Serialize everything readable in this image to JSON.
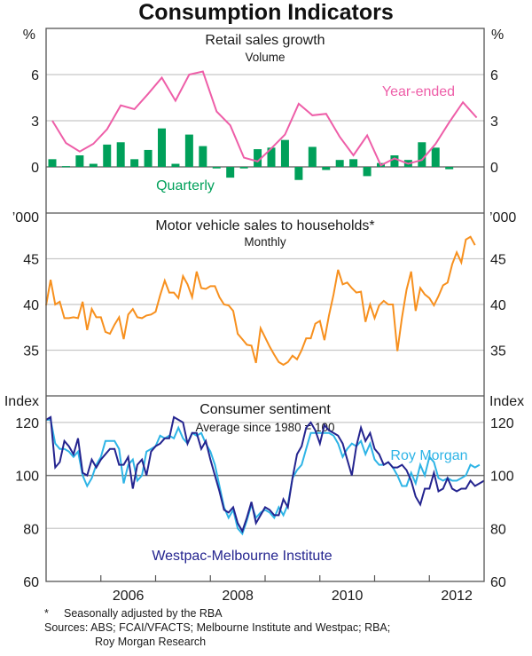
{
  "title": "Consumption Indicators",
  "colors": {
    "year_ended": "#ee5ea8",
    "quarterly": "#00a05a",
    "motor": "#f7901e",
    "westpac": "#24248f",
    "roy_morgan": "#2eb4e6",
    "grid": "#c8c8c8",
    "axis": "#555555"
  },
  "chart_data": [
    {
      "type": "bar+line",
      "title": "Retail sales growth",
      "subtitle": "Volume",
      "ylabel_left": "%",
      "ylabel_right": "%",
      "ylim": [
        -3.0,
        9.0
      ],
      "yticks": [
        0,
        3,
        6
      ],
      "x_range": [
        "2005-01",
        "2013-01"
      ],
      "series": [
        {
          "name": "Year-ended",
          "kind": "line",
          "x": [
            2005.0,
            2005.25,
            2005.5,
            2005.75,
            2006.0,
            2006.25,
            2006.5,
            2006.75,
            2007.0,
            2007.25,
            2007.5,
            2007.75,
            2008.0,
            2008.25,
            2008.5,
            2008.75,
            2009.0,
            2009.25,
            2009.5,
            2009.75,
            2010.0,
            2010.25,
            2010.5,
            2010.75,
            2011.0,
            2011.25,
            2011.5,
            2011.75,
            2012.0,
            2012.25,
            2012.5,
            2012.75
          ],
          "values": [
            3.0,
            1.55,
            1.0,
            1.5,
            2.45,
            4.0,
            3.75,
            4.75,
            5.8,
            4.3,
            6.0,
            6.2,
            3.6,
            2.7,
            0.6,
            0.35,
            1.2,
            2.1,
            4.1,
            3.35,
            3.45,
            1.95,
            0.75,
            2.05,
            0.1,
            0.55,
            0.2,
            0.45,
            1.5,
            2.9,
            4.2,
            3.2
          ]
        },
        {
          "name": "Quarterly",
          "kind": "bar",
          "x": [
            2005.0,
            2005.25,
            2005.5,
            2005.75,
            2006.0,
            2006.25,
            2006.5,
            2006.75,
            2007.0,
            2007.25,
            2007.5,
            2007.75,
            2008.0,
            2008.25,
            2008.5,
            2008.75,
            2009.0,
            2009.25,
            2009.5,
            2009.75,
            2010.0,
            2010.25,
            2010.5,
            2010.75,
            2011.0,
            2011.25,
            2011.5,
            2011.75,
            2012.0,
            2012.25,
            2012.5
          ],
          "values": [
            0.5,
            0.05,
            0.75,
            0.2,
            1.45,
            1.6,
            0.5,
            1.1,
            2.5,
            0.2,
            2.1,
            1.35,
            -0.1,
            -0.7,
            -0.1,
            1.15,
            1.25,
            1.75,
            -0.85,
            1.3,
            -0.2,
            0.45,
            0.5,
            -0.6,
            0.25,
            0.75,
            0.45,
            1.6,
            1.25,
            -0.15,
            0.0
          ]
        }
      ],
      "legend": [
        {
          "label": "Year-ended",
          "placement": "top-right"
        },
        {
          "label": "Quarterly",
          "placement": "bottom-left"
        }
      ]
    },
    {
      "type": "line",
      "title": "Motor vehicle sales to households*",
      "subtitle": "Monthly",
      "ylabel_left": "’000",
      "ylabel_right": "’000",
      "ylim": [
        30,
        50
      ],
      "yticks": [
        35,
        40,
        45
      ],
      "x_start": "2005-01",
      "frequency": "monthly",
      "series": [
        {
          "name": "Motor vehicle sales",
          "values": [
            39.9,
            42.7,
            40.0,
            40.3,
            38.5,
            38.5,
            38.6,
            38.5,
            40.3,
            37.2,
            39.5,
            38.6,
            38.6,
            37.0,
            36.8,
            37.8,
            38.6,
            36.2,
            38.9,
            39.5,
            38.6,
            38.5,
            38.8,
            38.9,
            39.2,
            41.0,
            42.6,
            41.3,
            41.3,
            40.7,
            43.1,
            42.2,
            40.8,
            43.6,
            41.8,
            41.7,
            42.0,
            42.0,
            40.8,
            40.0,
            39.9,
            39.3,
            36.8,
            36.2,
            35.6,
            35.5,
            33.6,
            37.4,
            36.4,
            35.4,
            34.5,
            33.7,
            33.4,
            33.7,
            34.4,
            34.0,
            35.0,
            36.3,
            36.3,
            37.9,
            38.2,
            36.1,
            38.8,
            41.1,
            43.8,
            42.2,
            42.4,
            41.8,
            41.3,
            41.4,
            38.1,
            40.0,
            38.5,
            39.9,
            40.4,
            40.0,
            40.0,
            34.9,
            38.6,
            41.6,
            43.6,
            39.3,
            41.8,
            41.1,
            40.7,
            39.9,
            40.9,
            42.1,
            42.4,
            44.4,
            45.7,
            44.6,
            47.1,
            47.4,
            46.5
          ]
        }
      ]
    },
    {
      "type": "line",
      "title": "Consumer sentiment",
      "subtitle": "Average since 1980 = 100",
      "ylabel_left": "Index",
      "ylabel_right": "Index",
      "ylim": [
        60,
        130
      ],
      "yticks": [
        60,
        80,
        100,
        120
      ],
      "x_start": "2005-01",
      "frequency": "monthly",
      "xticks": [
        "2006",
        "2008",
        "2010",
        "2012"
      ],
      "series": [
        {
          "name": "Westpac-Melbourne Institute",
          "values": [
            121,
            122,
            103,
            105,
            113,
            111,
            108,
            114,
            101,
            100,
            106,
            103,
            106,
            108,
            110,
            110,
            104,
            104,
            107,
            95,
            104,
            106,
            100,
            109,
            111,
            112,
            114,
            114,
            122,
            121,
            120,
            112,
            116,
            116,
            110,
            113,
            106,
            100,
            94,
            87,
            86,
            88,
            82,
            79,
            84,
            90,
            82,
            85,
            88,
            87,
            85,
            85,
            91,
            88,
            99,
            108,
            111,
            118,
            120,
            117,
            112,
            119,
            117,
            116,
            115,
            112,
            106,
            100,
            111,
            118,
            113,
            116,
            110,
            108,
            104,
            105,
            103,
            103,
            104,
            102,
            98,
            92,
            89,
            95,
            95,
            101,
            94,
            95,
            99,
            95,
            94,
            95,
            95,
            98,
            96,
            97,
            98
          ],
          "legend_placement": "bottom-center"
        },
        {
          "name": "Roy Morgan",
          "values": [
            121,
            121,
            112,
            110,
            110,
            109,
            107,
            109,
            100,
            96,
            99,
            104,
            107,
            113,
            113,
            113,
            110,
            97,
            104,
            106,
            98,
            100,
            109,
            110,
            111,
            115,
            114,
            115,
            114,
            118,
            114,
            112,
            116,
            115,
            116,
            112,
            109,
            104,
            96,
            88,
            84,
            87,
            80,
            78,
            83,
            89,
            84,
            86,
            87,
            86,
            84,
            88,
            85,
            89,
            99,
            102,
            104,
            110,
            116,
            116,
            116,
            116,
            116,
            115,
            112,
            107,
            110,
            112,
            111,
            113,
            108,
            112,
            106,
            104,
            104,
            105,
            103,
            100,
            96,
            96,
            101,
            97,
            104,
            100,
            107,
            105,
            99,
            98,
            99,
            98,
            98,
            99,
            100,
            104,
            103,
            104
          ],
          "legend_placement": "top-right"
        }
      ]
    }
  ],
  "xaxis": {
    "ticks_years": [
      "2006",
      "2008",
      "2010",
      "2012"
    ],
    "start_year": 2005,
    "end_year": 2013
  },
  "footnotes": {
    "star": "*",
    "note": "Seasonally adjusted by the RBA",
    "sources_label": "Sources:",
    "sources_line1": "ABS; FCAI/VFACTS; Melbourne Institute and Westpac; RBA;",
    "sources_line2": "Roy Morgan Research"
  }
}
